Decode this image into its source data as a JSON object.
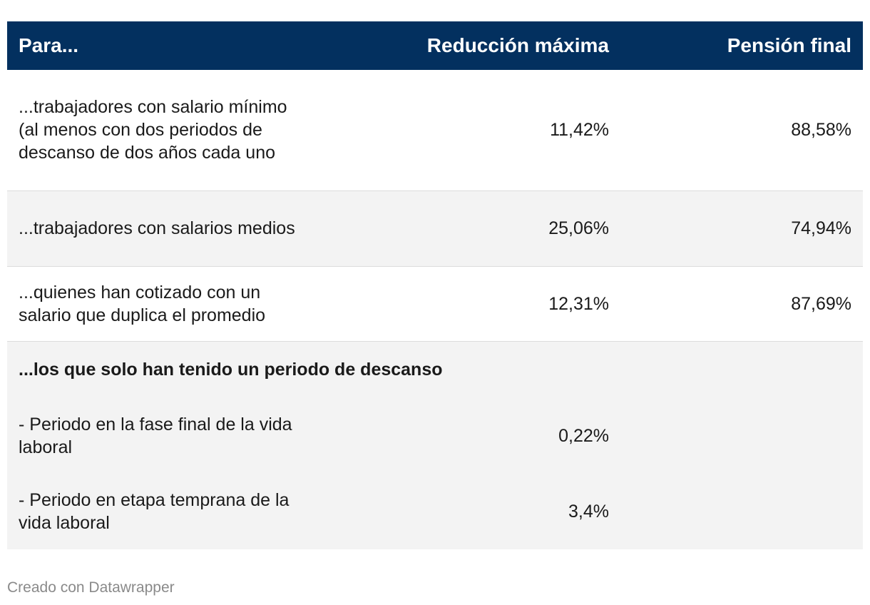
{
  "chart_data": {
    "type": "table",
    "columns": [
      "Para...",
      "Reducción máxima",
      "Pensión final"
    ],
    "rows": [
      {
        "label": "...trabajadores con salario mínimo (al menos con dos periodos de descanso de dos años cada uno",
        "reduccion": "11,42%",
        "pension": "88,58%"
      },
      {
        "label": "...trabajadores con salarios medios",
        "reduccion": "25,06%",
        "pension": "74,94%"
      },
      {
        "label": "...quienes han cotizado con un salario que duplica el promedio",
        "reduccion": "12,31%",
        "pension": "87,69%"
      },
      {
        "group_label": "...los que solo han tenido un periodo de descanso"
      },
      {
        "label": "- Periodo en la fase final de la vida laboral",
        "reduccion": "0,22%",
        "pension": ""
      },
      {
        "label": "- Periodo en etapa temprana de la vida laboral",
        "reduccion": "3,4%",
        "pension": ""
      }
    ]
  },
  "footer": "Creado con Datawrapper",
  "colors": {
    "header_bg": "#03305f",
    "row_alt_bg": "#f3f3f3",
    "footer_text": "#8a8a8a"
  }
}
